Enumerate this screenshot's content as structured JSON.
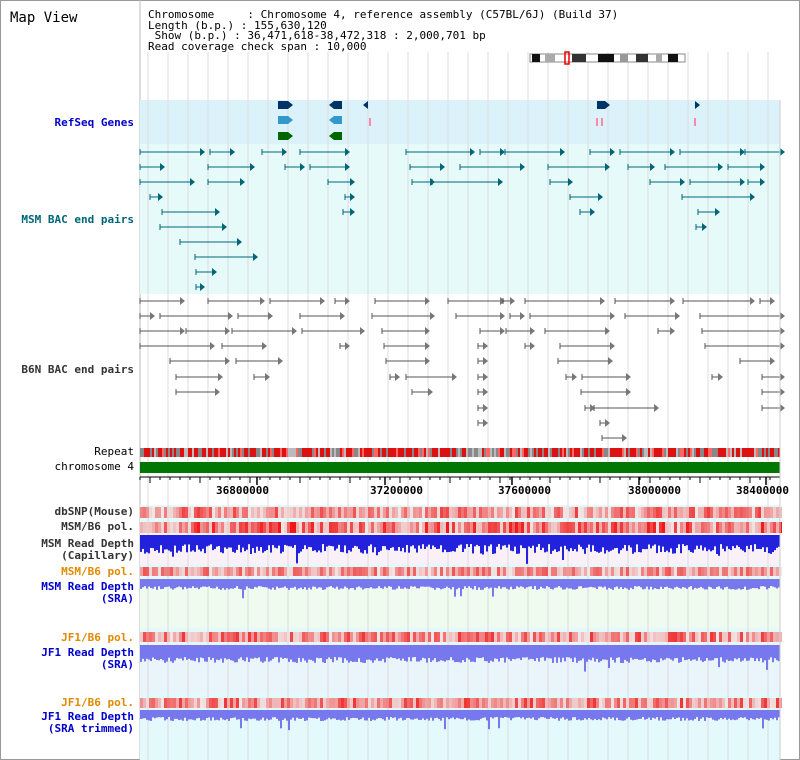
{
  "title": "Map View",
  "info": {
    "chromosome": "Chromosome     : Chromosome 4, reference assembly (C57BL/6J) (Build 37)",
    "length": "Length (b.p.) : 155,630,120",
    "show": " Show (b.p.) : 36,471,618-38,472,318 : 2,000,701 bp",
    "coverage": "Read coverage check span : 10,000"
  },
  "tracks": {
    "refseq": "RefSeq Genes",
    "msm_bac": "MSM BAC end pairs",
    "b6n_bac": "B6N BAC end pairs",
    "repeat": "Repeat",
    "chromosome": "chromosome 4",
    "dbsnp": "dbSNP(Mouse)",
    "msm_b6_pol": "MSM/B6 pol.",
    "msm_depth_cap_1": "MSM Read Depth",
    "msm_depth_cap_2": "(Capillary)",
    "msm_b6_pol2": "MSM/B6 pol.",
    "msm_depth_sra_1": "MSM Read Depth",
    "msm_depth_sra_2": "(SRA)",
    "jf1_b6_pol": "JF1/B6 pol.",
    "jf1_depth_sra_1": "JF1 Read Depth",
    "jf1_depth_sra_2": "(SRA)",
    "jf1_b6_pol2": "JF1/B6 pol.",
    "jf1_trim_1": "JF1 Read Depth",
    "jf1_trim_2": "(SRA trimmed)"
  },
  "axis_ticks": [
    "36800000",
    "37200000",
    "37600000",
    "38000000",
    "38400000"
  ],
  "colors": {
    "track_blue": "#0000cc",
    "track_teal": "#006677",
    "track_gray": "#333333",
    "track_orange": "#e08a00",
    "refseq_bg": "#dcf2fa",
    "bac_bg": "#e6fafa",
    "chrom_green": "#007700",
    "depth_blue": "#2222dd",
    "depth_violet": "#7777ee"
  }
}
